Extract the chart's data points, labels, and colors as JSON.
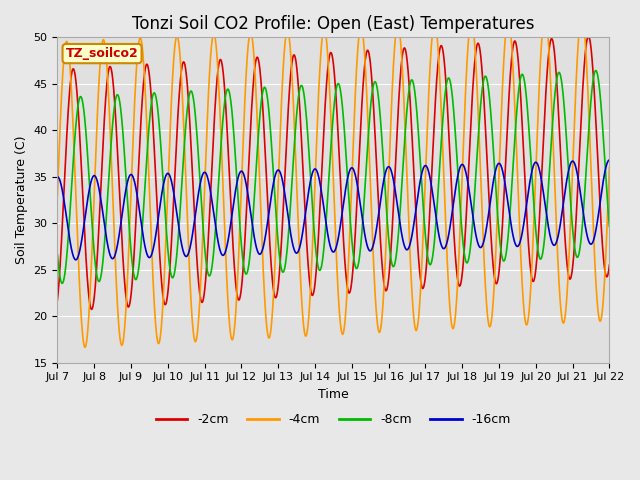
{
  "title": "Tonzi Soil CO2 Profile: Open (East) Temperatures",
  "xlabel": "Time",
  "ylabel": "Soil Temperature (C)",
  "ylim": [
    15,
    50
  ],
  "xlim_days": [
    0,
    15
  ],
  "x_tick_labels": [
    "Jul 7",
    "Jul 8",
    "Jul 9",
    "Jul 10",
    "Jul 11",
    "Jul 12",
    "Jul 13",
    "Jul 14",
    "Jul 15",
    "Jul 16",
    "Jul 17",
    "Jul 18",
    "Jul 19",
    "Jul 20",
    "Jul 21",
    "Jul 22"
  ],
  "x_tick_positions": [
    0,
    1,
    2,
    3,
    4,
    5,
    6,
    7,
    8,
    9,
    10,
    11,
    12,
    13,
    14,
    15
  ],
  "series": [
    {
      "label": "-2cm",
      "color": "#dd0000",
      "mean": 33.5,
      "amplitude": 13.0,
      "phase_shift": 0.18,
      "trend": 0.25
    },
    {
      "label": "-4cm",
      "color": "#ff9900",
      "mean": 33.0,
      "amplitude": 16.5,
      "phase_shift": 0.0,
      "trend": 0.2
    },
    {
      "label": "-8cm",
      "color": "#00bb00",
      "mean": 33.5,
      "amplitude": 10.0,
      "phase_shift": 0.38,
      "trend": 0.2
    },
    {
      "label": "-16cm",
      "color": "#0000cc",
      "mean": 30.5,
      "amplitude": 4.5,
      "phase_shift": 0.75,
      "trend": 0.12
    }
  ],
  "points_per_day": 200,
  "total_days": 15,
  "legend_box_label": "TZ_soilco2",
  "legend_box_facecolor": "#ffffcc",
  "legend_box_edgecolor": "#cc8800",
  "figure_facecolor": "#e8e8e8",
  "axes_facecolor": "#e0e0e0",
  "grid_color": "#ffffff",
  "title_fontsize": 12,
  "axis_label_fontsize": 9,
  "tick_fontsize": 8,
  "legend_fontsize": 9,
  "linewidth": 1.2
}
